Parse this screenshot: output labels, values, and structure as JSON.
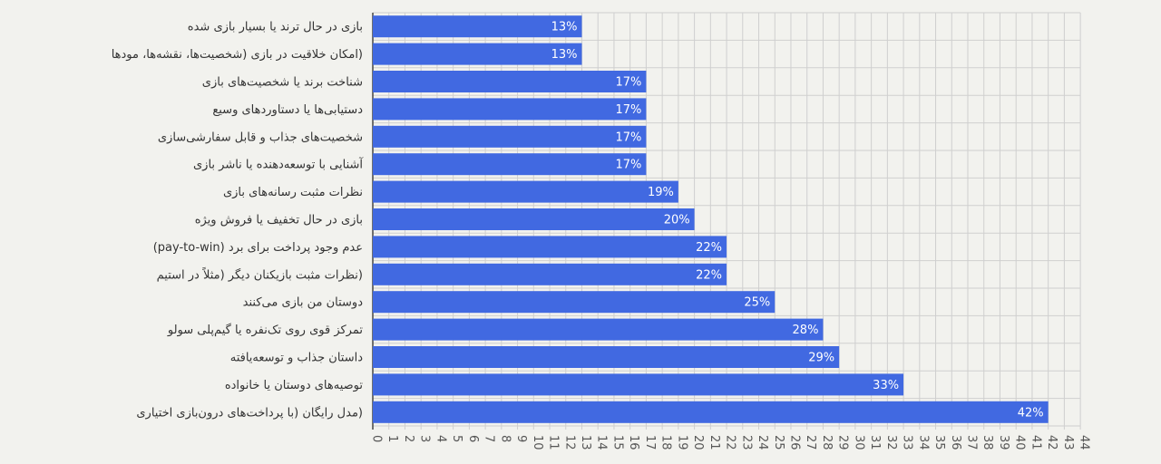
{
  "chart_data": {
    "type": "bar",
    "orientation": "horizontal",
    "categories": [
      "بازی در حال ترند یا بسیار بازی شده",
      "(امکان خلاقیت در بازی (شخصیت‌ها، نقشه‌ها، مودها",
      "شناخت برند یا شخصیت‌های بازی",
      "دستیابی‌ها یا دستاوردهای وسیع",
      "شخصیت‌های جذاب و قابل سفارشی‌سازی",
      "آشنایی با توسعه‌دهنده یا ناشر بازی",
      "نظرات مثبت رسانه‌های بازی",
      "بازی در حال تخفیف یا فروش ویژه",
      "(pay-to-win) عدم وجود پرداخت برای برد",
      "(نظرات مثبت بازیکنان دیگر (مثلاً در استیم",
      "دوستان من بازی می‌کنند",
      "تمرکز قوی روی تک‌نفره یا گیم‌پلی سولو",
      "داستان جذاب و توسعه‌یافته",
      "توصیه‌های دوستان یا خانواده",
      "(مدل رایگان (با پرداخت‌های درون‌بازی اختیاری"
    ],
    "values": [
      13,
      13,
      17,
      17,
      17,
      17,
      19,
      20,
      22,
      22,
      25,
      28,
      29,
      33,
      42
    ],
    "value_labels": [
      "13%",
      "13%",
      "17%",
      "17%",
      "17%",
      "17%",
      "19%",
      "20%",
      "22%",
      "22%",
      "25%",
      "28%",
      "29%",
      "33%",
      "42%"
    ],
    "x_ticks": [
      0,
      1,
      2,
      3,
      4,
      5,
      6,
      7,
      8,
      9,
      10,
      11,
      12,
      13,
      14,
      15,
      16,
      17,
      18,
      19,
      20,
      21,
      22,
      23,
      24,
      25,
      26,
      27,
      28,
      29,
      30,
      31,
      32,
      33,
      34,
      35,
      36,
      37,
      38,
      39,
      40,
      41,
      42,
      43,
      44
    ],
    "xlim": [
      0,
      44
    ],
    "title": "",
    "xlabel": "",
    "ylabel": "",
    "grid": true,
    "legend": "none",
    "colors": {
      "bar": "#4169e1",
      "background": "#f2f2ee",
      "grid": "#cfcfcf",
      "text": "#333333",
      "bar_label": "#ffffff"
    }
  }
}
